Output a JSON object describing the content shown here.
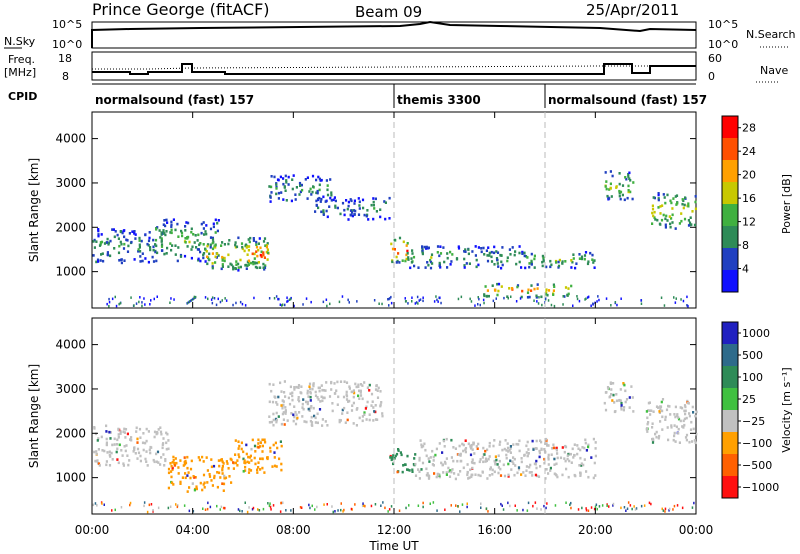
{
  "header": {
    "station": "Prince George (fitACF)",
    "beam": "Beam 09",
    "date": "25/Apr/2011"
  },
  "top_labels": {
    "nsky": "N.Sky",
    "nsky_hi": "10^5",
    "nsky_lo": "10^0",
    "nsearch": "N.Search",
    "nsearch_hi": "10^5",
    "nsearch_lo": "10^0",
    "freq_line1": "Freq.",
    "freq_line2": "[MHz]",
    "freq_hi": "18",
    "freq_lo": "8",
    "nave": "Nave",
    "nave_hi": "60",
    "nave_lo": "0",
    "cpid": "CPID"
  },
  "cpid_segments": [
    {
      "label": "normalsound (fast) 157",
      "start": 0
    },
    {
      "label": "themis 3300",
      "start": 12
    },
    {
      "label": "normalsound (fast) 157",
      "start": 18
    }
  ],
  "chart_data": [
    {
      "type": "heatmap",
      "name": "power",
      "xlabel": "Time UT",
      "ylabel": "Slant Range [km]",
      "xlim": [
        0,
        24
      ],
      "ylim": [
        180,
        4600
      ],
      "xticks": [
        "00:00",
        "04:00",
        "08:00",
        "12:00",
        "16:00",
        "20:00",
        "00:00"
      ],
      "yticks": [
        "1000",
        "2000",
        "3000",
        "4000"
      ],
      "colorbar_label": "Power [dB]",
      "colorbar_ticks": [
        "4",
        "8",
        "12",
        "16",
        "20",
        "24",
        "28"
      ],
      "colorbar_range": [
        0,
        30
      ],
      "colors": [
        "#1010ff",
        "#2040c0",
        "#2e8b57",
        "#40b040",
        "#c8c800",
        "#ffa000",
        "#ff5000",
        "#ff0000"
      ],
      "bands": [
        {
          "x": [
            0,
            2.5
          ],
          "y": [
            1200,
            2000
          ],
          "level": 0.35
        },
        {
          "x": [
            2.5,
            5.0
          ],
          "y": [
            1250,
            2200
          ],
          "level": 0.45
        },
        {
          "x": [
            4.5,
            7.0
          ],
          "y": [
            1050,
            1800
          ],
          "level": 0.65
        },
        {
          "x": [
            6.0,
            7.0
          ],
          "y": [
            1100,
            1700
          ],
          "level": 0.9
        },
        {
          "x": [
            7.0,
            9.5
          ],
          "y": [
            2600,
            3200
          ],
          "level": 0.35
        },
        {
          "x": [
            8.8,
            11.8
          ],
          "y": [
            2200,
            2700
          ],
          "level": 0.3
        },
        {
          "x": [
            11.8,
            12.5
          ],
          "y": [
            1200,
            1800
          ],
          "level": 0.85
        },
        {
          "x": [
            12.5,
            17.0
          ],
          "y": [
            1100,
            1600
          ],
          "level": 0.4
        },
        {
          "x": [
            15.5,
            19.0
          ],
          "y": [
            450,
            750
          ],
          "level": 0.75
        },
        {
          "x": [
            17.0,
            20.0
          ],
          "y": [
            1100,
            1500
          ],
          "level": 0.45
        },
        {
          "x": [
            20.3,
            21.5
          ],
          "y": [
            2600,
            3300
          ],
          "level": 0.5
        },
        {
          "x": [
            22.2,
            24.0
          ],
          "y": [
            2000,
            2800
          ],
          "level": 0.6
        }
      ]
    },
    {
      "type": "heatmap",
      "name": "velocity",
      "xlabel": "Time UT",
      "ylabel": "Slant Range [km]",
      "xlim": [
        0,
        24
      ],
      "ylim": [
        180,
        4600
      ],
      "xticks": [
        "00:00",
        "04:00",
        "08:00",
        "12:00",
        "16:00",
        "20:00",
        "00:00"
      ],
      "yticks": [
        "1000",
        "2000",
        "3000",
        "4000"
      ],
      "colorbar_label": "Velocity [m s⁻¹]",
      "colorbar_ticks": [
        "1000",
        "500",
        "100",
        "25",
        "−25",
        "−100",
        "−500",
        "−1000"
      ],
      "colors": [
        "#2020c0",
        "#2e6b8b",
        "#2e8b57",
        "#40c040",
        "#c0c0c0",
        "#ffa000",
        "#ff6000",
        "#ff1010"
      ],
      "bands": [
        {
          "x": [
            0,
            3.0
          ],
          "y": [
            1300,
            2200
          ],
          "level": "gray"
        },
        {
          "x": [
            3.0,
            5.5
          ],
          "y": [
            700,
            1500
          ],
          "level": "orange"
        },
        {
          "x": [
            5.5,
            7.5
          ],
          "y": [
            1100,
            1900
          ],
          "level": "orange"
        },
        {
          "x": [
            7.0,
            11.5
          ],
          "y": [
            2200,
            3200
          ],
          "level": "gray"
        },
        {
          "x": [
            11.8,
            12.8
          ],
          "y": [
            1100,
            1700
          ],
          "level": "green"
        },
        {
          "x": [
            12.8,
            20.0
          ],
          "y": [
            1000,
            1900
          ],
          "level": "gray"
        },
        {
          "x": [
            20.3,
            21.5
          ],
          "y": [
            2500,
            3200
          ],
          "level": "gray"
        },
        {
          "x": [
            22.0,
            24.0
          ],
          "y": [
            1800,
            2800
          ],
          "level": "gray"
        }
      ]
    }
  ]
}
